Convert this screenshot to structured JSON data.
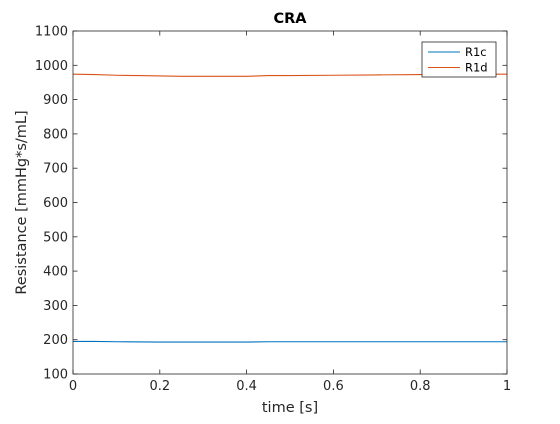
{
  "chart_data": {
    "type": "line",
    "title": "CRA",
    "xlabel": "time [s]",
    "ylabel": "Resistance [mmHg*s/mL]",
    "xlim": [
      0,
      1
    ],
    "ylim": [
      100,
      1100
    ],
    "xticks": [
      0,
      0.2,
      0.4,
      0.6,
      0.8,
      1
    ],
    "xtick_labels": [
      "0",
      "0.2",
      "0.4",
      "0.6",
      "0.8",
      "1"
    ],
    "yticks": [
      100,
      200,
      300,
      400,
      500,
      600,
      700,
      800,
      900,
      1000,
      1100
    ],
    "ytick_labels": [
      "100",
      "200",
      "300",
      "400",
      "500",
      "600",
      "700",
      "800",
      "900",
      "1000",
      "1100"
    ],
    "grid": false,
    "legend_location": "top-right",
    "series": [
      {
        "name": "R1c",
        "color": "#0072BD",
        "x": [
          0,
          0.05,
          0.1,
          0.2,
          0.3,
          0.4,
          0.45,
          0.5,
          0.6,
          0.7,
          0.8,
          0.9,
          1.0
        ],
        "y": [
          195,
          195,
          194,
          193,
          193,
          193,
          194,
          194,
          194,
          194,
          194,
          194,
          194
        ]
      },
      {
        "name": "R1d",
        "color": "#D95319",
        "x": [
          0,
          0.05,
          0.1,
          0.15,
          0.2,
          0.25,
          0.3,
          0.35,
          0.4,
          0.45,
          0.5,
          0.6,
          0.7,
          0.8,
          0.9,
          0.95,
          1.0
        ],
        "y": [
          974,
          973,
          971,
          970,
          969,
          968,
          968,
          968,
          968,
          970,
          970,
          971,
          972,
          973,
          974,
          974,
          974
        ]
      }
    ]
  }
}
